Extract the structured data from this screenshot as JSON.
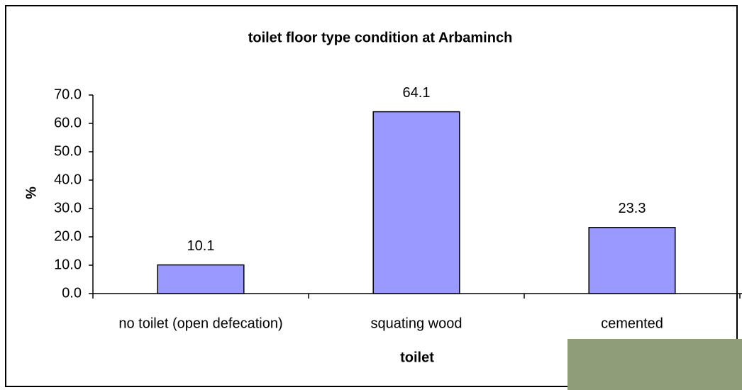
{
  "chart_data": {
    "type": "bar",
    "title": "toilet floor type condition at Arbaminch",
    "x_label": "toilet",
    "y_label": "%",
    "categories": [
      "no toilet (open defecation)",
      "squating wood",
      "cemented"
    ],
    "values": [
      10.1,
      64.1,
      23.3
    ],
    "color": "#9999ff",
    "ylim": [
      0,
      70
    ],
    "yticks": [
      {
        "value": 0,
        "label": "0.0"
      },
      {
        "value": 10,
        "label": "10.0"
      },
      {
        "value": 20,
        "label": "20.0"
      },
      {
        "value": 30,
        "label": "30.0"
      },
      {
        "value": 40,
        "label": "40.0"
      },
      {
        "value": 50,
        "label": "50.0"
      },
      {
        "value": 60,
        "label": "60.0"
      },
      {
        "value": 70,
        "label": "70.0"
      }
    ],
    "grid": false
  }
}
